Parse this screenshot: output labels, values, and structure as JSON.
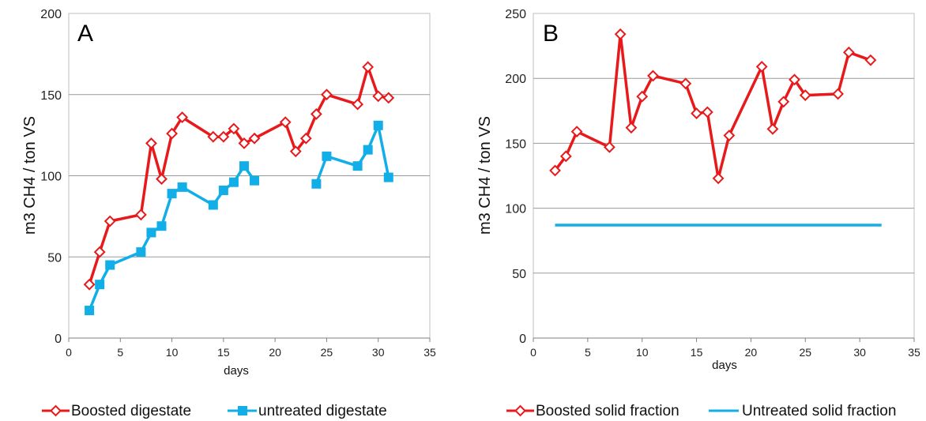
{
  "chart_data": [
    {
      "type": "line",
      "panel_label": "A",
      "xlabel": "days",
      "ylabel": "m3 CH4 / ton VS",
      "xlim": [
        0,
        35
      ],
      "ylim": [
        0,
        200
      ],
      "x_ticks": [
        0,
        5,
        10,
        15,
        20,
        25,
        30,
        35
      ],
      "y_ticks": [
        0,
        50,
        100,
        150,
        200
      ],
      "grid": "horizontal",
      "legend_position": "bottom",
      "series": [
        {
          "name": "Boosted digestate",
          "color": "#e8191b",
          "marker": "diamond-open",
          "x": [
            2,
            3,
            4,
            7,
            8,
            9,
            10,
            11,
            14,
            15,
            16,
            17,
            18,
            21,
            22,
            23,
            24,
            25,
            28,
            29,
            30,
            31
          ],
          "y": [
            33,
            53,
            72,
            76,
            120,
            98,
            126,
            136,
            124,
            124,
            129,
            120,
            123,
            133,
            115,
            123,
            138,
            150,
            144,
            167,
            149,
            148
          ]
        },
        {
          "name": "untreated digestate",
          "color": "#11aee8",
          "marker": "square",
          "segments": [
            {
              "x": [
                2,
                3,
                4,
                7,
                8,
                9,
                10,
                11,
                14,
                15,
                16,
                17,
                18
              ],
              "y": [
                17,
                33,
                45,
                53,
                65,
                69,
                89,
                93,
                82,
                91,
                96,
                106,
                97
              ]
            },
            {
              "x": [
                24,
                25,
                28,
                29,
                30,
                31
              ],
              "y": [
                95,
                112,
                106,
                116,
                131,
                99
              ]
            }
          ]
        }
      ]
    },
    {
      "type": "line",
      "panel_label": "B",
      "xlabel": "days",
      "ylabel": "m3 CH4 / ton VS",
      "xlim": [
        0,
        35
      ],
      "ylim": [
        0,
        250
      ],
      "x_ticks": [
        0,
        5,
        10,
        15,
        20,
        25,
        30,
        35
      ],
      "y_ticks": [
        0,
        50,
        100,
        150,
        200,
        250
      ],
      "grid": "horizontal",
      "legend_position": "bottom",
      "series": [
        {
          "name": "Boosted solid fraction",
          "color": "#e8191b",
          "marker": "diamond-open",
          "x": [
            2,
            3,
            4,
            7,
            8,
            9,
            10,
            11,
            14,
            15,
            16,
            17,
            18,
            21,
            22,
            23,
            24,
            25,
            28,
            29,
            31
          ],
          "y": [
            129,
            140,
            159,
            147,
            234,
            162,
            186,
            202,
            196,
            173,
            174,
            123,
            156,
            209,
            161,
            182,
            199,
            187,
            188,
            220,
            214
          ]
        },
        {
          "name": "Untreated solid fraction",
          "color": "#11aee8",
          "marker": "none",
          "x": [
            2,
            32
          ],
          "y": [
            87,
            87
          ]
        }
      ]
    }
  ]
}
